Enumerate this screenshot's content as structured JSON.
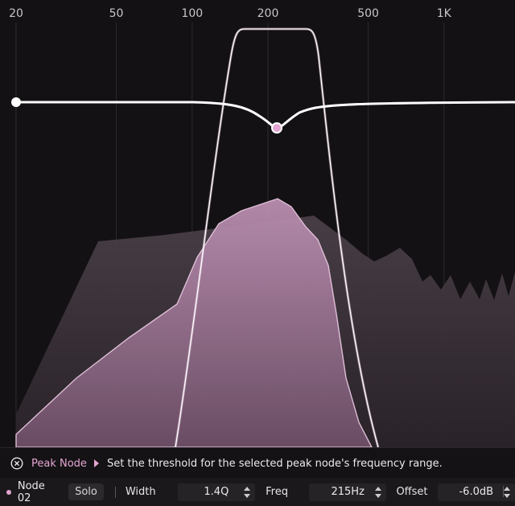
{
  "freq_axis": {
    "labels": [
      {
        "text": "20",
        "hz": 20
      },
      {
        "text": "50",
        "hz": 50
      },
      {
        "text": "100",
        "hz": 100
      },
      {
        "text": "200",
        "hz": 200
      },
      {
        "text": "500",
        "hz": 500
      },
      {
        "text": "1K",
        "hz": 1000
      }
    ]
  },
  "peak_node": {
    "freq_hz": 215,
    "gain_db": -6.0
  },
  "colors": {
    "accent": "#e3a6d2",
    "curve": "#ffffff",
    "spectrum_fill": "#3a3039",
    "node_spectrum": "#a7809e",
    "band_outline": "#d8b8cf"
  },
  "info_bar": {
    "icon": "close-circle-icon",
    "title": "Peak Node",
    "arrow_icon": "play-icon",
    "text": "Set the threshold for the selected peak node's frequency range."
  },
  "node_bar": {
    "node_name": "Node 02",
    "solo_label": "Solo",
    "width_label": "Width",
    "width_value": "1.4Q",
    "freq_label": "Freq",
    "freq_value": "215Hz",
    "offset_label": "Offset",
    "offset_value": "-6.0dB"
  }
}
